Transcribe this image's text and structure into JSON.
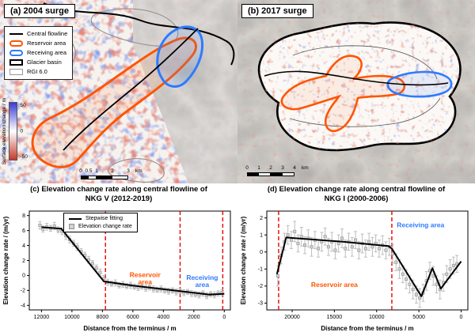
{
  "panels": {
    "a": {
      "label": "(a) 2004 surge",
      "legend_items": [
        {
          "key": "central-flowline",
          "label": "Central flowline",
          "swatch": "line",
          "color": "#000000"
        },
        {
          "key": "reservoir-area",
          "label": "Reservoir area",
          "swatch": "poly",
          "color": "#ff5500"
        },
        {
          "key": "receiving-area",
          "label": "Receiving area",
          "swatch": "poly",
          "color": "#2e7bff"
        },
        {
          "key": "glacier-basin",
          "label": "Glacier basin",
          "swatch": "outline",
          "color": "#000000"
        },
        {
          "key": "rgi-60",
          "label": "RGI 6.0",
          "swatch": "outline-thin",
          "color": "#999999"
        }
      ],
      "colorbar": {
        "label": "Surface elevation change / m",
        "ticks": [
          "50",
          "0",
          "-50"
        ],
        "colors": [
          "#3b3bd0",
          "#ffffff",
          "#c23b2e"
        ]
      },
      "scalebar": {
        "labels": [
          "0",
          "0.5",
          "1",
          "2",
          "3"
        ],
        "unit": "km"
      }
    },
    "b": {
      "label": "(b) 2017 surge",
      "scalebar": {
        "labels": [
          "0",
          "1",
          "2",
          "3",
          "4"
        ],
        "unit": "km"
      }
    }
  },
  "chart_data": [
    {
      "id": "c",
      "type": "line",
      "title": "(c) Elevation change rate along central flowline of NKG V (2012-2019)",
      "xlabel": "Distance from the terminus / m",
      "ylabel": "Elevation change rate / (m/yr)",
      "xlim": [
        12800,
        -400
      ],
      "ylim": [
        -4.6,
        8.6
      ],
      "xticks": [
        12000,
        10000,
        8000,
        6000,
        4000,
        2000,
        0
      ],
      "yticks": [
        -4,
        -2,
        0,
        2,
        4,
        6,
        8
      ],
      "x_reversed": true,
      "grid": false,
      "legend_position": "top-center",
      "vline_color": "#e60000",
      "vlines": [
        7800,
        2900,
        100
      ],
      "legend": [
        {
          "type": "line",
          "label": "Stepwise fitting",
          "color": "#000000"
        },
        {
          "type": "marker",
          "label": "Elevation change rate",
          "color": "#d2d2d2"
        }
      ],
      "annotations": [
        {
          "lines": [
            "Reservoir",
            "area"
          ],
          "color": "#ff5500",
          "x": 5200,
          "y": -0.2
        },
        {
          "lines": [
            "Receiving",
            "area"
          ],
          "color": "#2e7bff",
          "x": 1450,
          "y": -0.6
        }
      ],
      "series": [
        {
          "name": "Stepwise fitting",
          "type": "fit-line",
          "color": "#000000",
          "points": [
            [
              12000,
              6.45
            ],
            [
              10700,
              6.25
            ],
            [
              7900,
              -0.8
            ],
            [
              6000,
              -1.35
            ],
            [
              2900,
              -2.1
            ],
            [
              1000,
              -2.55
            ],
            [
              0,
              -2.45
            ]
          ]
        },
        {
          "name": "Elevation change rate",
          "type": "scatter-error",
          "color": "#d2d2d2",
          "points": [
            [
              12100,
              6.7,
              0.5
            ],
            [
              11900,
              6.2,
              0.4
            ],
            [
              11650,
              6.5,
              0.45
            ],
            [
              11400,
              6.3,
              0.4
            ],
            [
              11150,
              6.6,
              0.5
            ],
            [
              10900,
              6.1,
              0.4
            ],
            [
              10650,
              5.9,
              0.45
            ],
            [
              10400,
              5.3,
              0.5
            ],
            [
              10150,
              4.8,
              0.45
            ],
            [
              9900,
              4.3,
              0.4
            ],
            [
              9650,
              3.8,
              0.45
            ],
            [
              9400,
              3.2,
              0.4
            ],
            [
              9150,
              2.7,
              0.4
            ],
            [
              8900,
              2.1,
              0.45
            ],
            [
              8650,
              1.6,
              0.4
            ],
            [
              8400,
              1.0,
              0.4
            ],
            [
              8150,
              0.4,
              0.45
            ],
            [
              7900,
              -0.4,
              0.4
            ],
            [
              7650,
              -0.9,
              0.4
            ],
            [
              7400,
              -1.1,
              0.35
            ],
            [
              7150,
              -1.0,
              0.4
            ],
            [
              6900,
              -1.3,
              0.35
            ],
            [
              6650,
              -1.2,
              0.4
            ],
            [
              6400,
              -1.4,
              0.35
            ],
            [
              6150,
              -1.3,
              0.4
            ],
            [
              5900,
              -1.5,
              0.35
            ],
            [
              5650,
              -1.6,
              0.4
            ],
            [
              5400,
              -1.5,
              0.35
            ],
            [
              5150,
              -1.7,
              0.4
            ],
            [
              4900,
              -1.6,
              0.35
            ],
            [
              4650,
              -1.8,
              0.4
            ],
            [
              4400,
              -1.9,
              0.35
            ],
            [
              4150,
              -1.8,
              0.4
            ],
            [
              3900,
              -2.0,
              0.35
            ],
            [
              3650,
              -2.1,
              0.4
            ],
            [
              3400,
              -2.0,
              0.35
            ],
            [
              3150,
              -2.2,
              0.4
            ],
            [
              2900,
              -2.1,
              0.35
            ],
            [
              2650,
              -2.3,
              0.4
            ],
            [
              2400,
              -2.2,
              0.35
            ],
            [
              2150,
              -2.4,
              0.4
            ],
            [
              1900,
              -2.5,
              0.35
            ],
            [
              1650,
              -2.6,
              0.4
            ],
            [
              1400,
              -2.4,
              0.35
            ],
            [
              1150,
              -2.7,
              0.4
            ],
            [
              900,
              -2.5,
              0.35
            ],
            [
              650,
              -2.6,
              0.4
            ],
            [
              400,
              -2.4,
              0.35
            ],
            [
              150,
              -2.3,
              0.4
            ]
          ]
        }
      ]
    },
    {
      "id": "d",
      "type": "line",
      "title": "(d) Elevation change rate along central flowline of NKG I (2000-2006)",
      "xlabel": "Distance from the terminus / m",
      "ylabel": "Elevation change rate / (m/yr)",
      "xlim": [
        23000,
        -800
      ],
      "ylim": [
        -3.4,
        2.4
      ],
      "xticks": [
        20000,
        15000,
        10000,
        5000,
        0
      ],
      "yticks": [
        -3,
        -2,
        -1,
        0,
        1,
        2
      ],
      "x_reversed": true,
      "grid": false,
      "legend_position": "none",
      "vline_color": "#e60000",
      "vlines": [
        21600,
        8200
      ],
      "annotations": [
        {
          "lines": [
            "Reservoir area"
          ],
          "color": "#ff5500",
          "x": 15000,
          "y": -2.05
        },
        {
          "lines": [
            "Receiving area"
          ],
          "color": "#2e7bff",
          "x": 4800,
          "y": 1.45
        }
      ],
      "series": [
        {
          "name": "Stepwise fitting",
          "type": "fit-line",
          "color": "#000000",
          "points": [
            [
              21800,
              -1.3
            ],
            [
              20700,
              0.85
            ],
            [
              14000,
              0.6
            ],
            [
              8600,
              0.35
            ],
            [
              8200,
              0.2
            ],
            [
              4700,
              -2.6
            ],
            [
              3400,
              -0.95
            ],
            [
              2400,
              -2.15
            ],
            [
              0,
              -0.55
            ]
          ]
        },
        {
          "name": "Elevation change rate",
          "type": "scatter-error",
          "color": "#d2d2d2",
          "points": [
            [
              21700,
              -1.4,
              0.6
            ],
            [
              21300,
              -0.2,
              0.5
            ],
            [
              20900,
              0.6,
              0.5
            ],
            [
              20500,
              1.0,
              0.55
            ],
            [
              20100,
              0.7,
              0.5
            ],
            [
              19700,
              1.2,
              0.6
            ],
            [
              19300,
              0.5,
              0.5
            ],
            [
              18900,
              0.9,
              0.55
            ],
            [
              18500,
              0.4,
              0.5
            ],
            [
              18100,
              0.8,
              0.5
            ],
            [
              17700,
              0.3,
              0.55
            ],
            [
              17300,
              0.7,
              0.5
            ],
            [
              16900,
              0.2,
              0.5
            ],
            [
              16500,
              0.6,
              0.55
            ],
            [
              16100,
              0.9,
              0.5
            ],
            [
              15700,
              0.3,
              0.5
            ],
            [
              15300,
              0.6,
              0.55
            ],
            [
              14900,
              0.1,
              0.5
            ],
            [
              14500,
              0.5,
              0.5
            ],
            [
              14100,
              0.8,
              0.55
            ],
            [
              13700,
              0.2,
              0.5
            ],
            [
              13300,
              0.6,
              0.5
            ],
            [
              12900,
              0.3,
              0.55
            ],
            [
              12500,
              0.7,
              0.5
            ],
            [
              12100,
              0.1,
              0.5
            ],
            [
              11700,
              0.5,
              0.55
            ],
            [
              11300,
              0.2,
              0.5
            ],
            [
              10900,
              0.6,
              0.5
            ],
            [
              10500,
              0.3,
              0.55
            ],
            [
              10100,
              0.5,
              0.5
            ],
            [
              9700,
              0.2,
              0.5
            ],
            [
              9300,
              0.4,
              0.55
            ],
            [
              8900,
              0.1,
              0.5
            ],
            [
              8500,
              0.3,
              0.5
            ],
            [
              8100,
              -0.1,
              0.55
            ],
            [
              7700,
              -0.6,
              0.5
            ],
            [
              7300,
              -1.0,
              0.55
            ],
            [
              6900,
              -1.3,
              0.5
            ],
            [
              6500,
              -1.6,
              0.55
            ],
            [
              6100,
              -1.9,
              0.5
            ],
            [
              5700,
              -2.2,
              0.55
            ],
            [
              5300,
              -2.5,
              0.5
            ],
            [
              4900,
              -2.7,
              0.55
            ],
            [
              4500,
              -2.4,
              0.5
            ],
            [
              4100,
              -1.7,
              0.55
            ],
            [
              3700,
              -1.1,
              0.5
            ],
            [
              3300,
              -1.4,
              0.55
            ],
            [
              2900,
              -1.9,
              0.5
            ],
            [
              2500,
              -2.2,
              0.55
            ],
            [
              2100,
              -1.8,
              0.5
            ],
            [
              1700,
              -1.3,
              0.5
            ],
            [
              1300,
              -1.0,
              0.55
            ],
            [
              900,
              -0.8,
              0.5
            ],
            [
              500,
              -0.7,
              0.5
            ]
          ]
        }
      ]
    }
  ]
}
